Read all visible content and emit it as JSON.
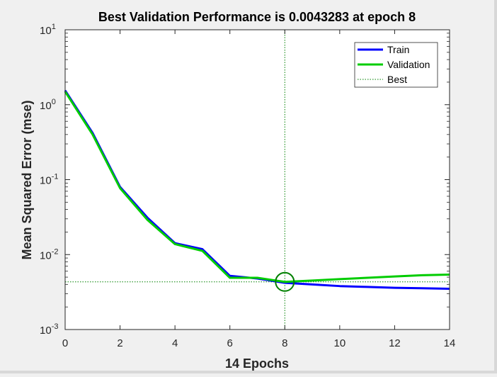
{
  "chart_data": {
    "type": "line",
    "title": "Best Validation Performance is 0.0043283 at epoch 8",
    "xlabel": "14 Epochs",
    "ylabel": "Mean Squared Error  (mse)",
    "xlim": [
      0,
      14
    ],
    "ylim": [
      0.001,
      10
    ],
    "yscale": "log",
    "grid": false,
    "legend_position": "top-right",
    "x_ticks": [
      {
        "value": 0,
        "label": "0"
      },
      {
        "value": 2,
        "label": "2"
      },
      {
        "value": 4,
        "label": "4"
      },
      {
        "value": 6,
        "label": "6"
      },
      {
        "value": 8,
        "label": "8"
      },
      {
        "value": 10,
        "label": "10"
      },
      {
        "value": 12,
        "label": "12"
      },
      {
        "value": 14,
        "label": "14"
      }
    ],
    "y_ticks": [
      {
        "value": 0.001,
        "base": "10",
        "exp": "-3"
      },
      {
        "value": 0.01,
        "base": "10",
        "exp": "-2"
      },
      {
        "value": 0.1,
        "base": "10",
        "exp": "-1"
      },
      {
        "value": 1,
        "base": "10",
        "exp": "0"
      },
      {
        "value": 10,
        "base": "10",
        "exp": "1"
      }
    ],
    "x": [
      0,
      1,
      2,
      3,
      4,
      5,
      6,
      7,
      8,
      9,
      10,
      11,
      12,
      13,
      14
    ],
    "series": [
      {
        "name": "Train",
        "color": "#0000ff",
        "style": "solid",
        "values": [
          1.55,
          0.42,
          0.08,
          0.031,
          0.0142,
          0.0118,
          0.0052,
          0.0048,
          0.0042,
          0.004,
          0.0038,
          0.0037,
          0.0036,
          0.00355,
          0.0035
        ]
      },
      {
        "name": "Validation",
        "color": "#00cc00",
        "style": "solid",
        "values": [
          1.5,
          0.4,
          0.077,
          0.029,
          0.0138,
          0.0112,
          0.0049,
          0.0049,
          0.0043283,
          0.0045,
          0.0047,
          0.0049,
          0.0051,
          0.0053,
          0.0054
        ]
      }
    ],
    "best": {
      "name": "Best",
      "color": "#008000",
      "style": "dotted",
      "epoch": 8,
      "value": 0.0043283
    }
  }
}
